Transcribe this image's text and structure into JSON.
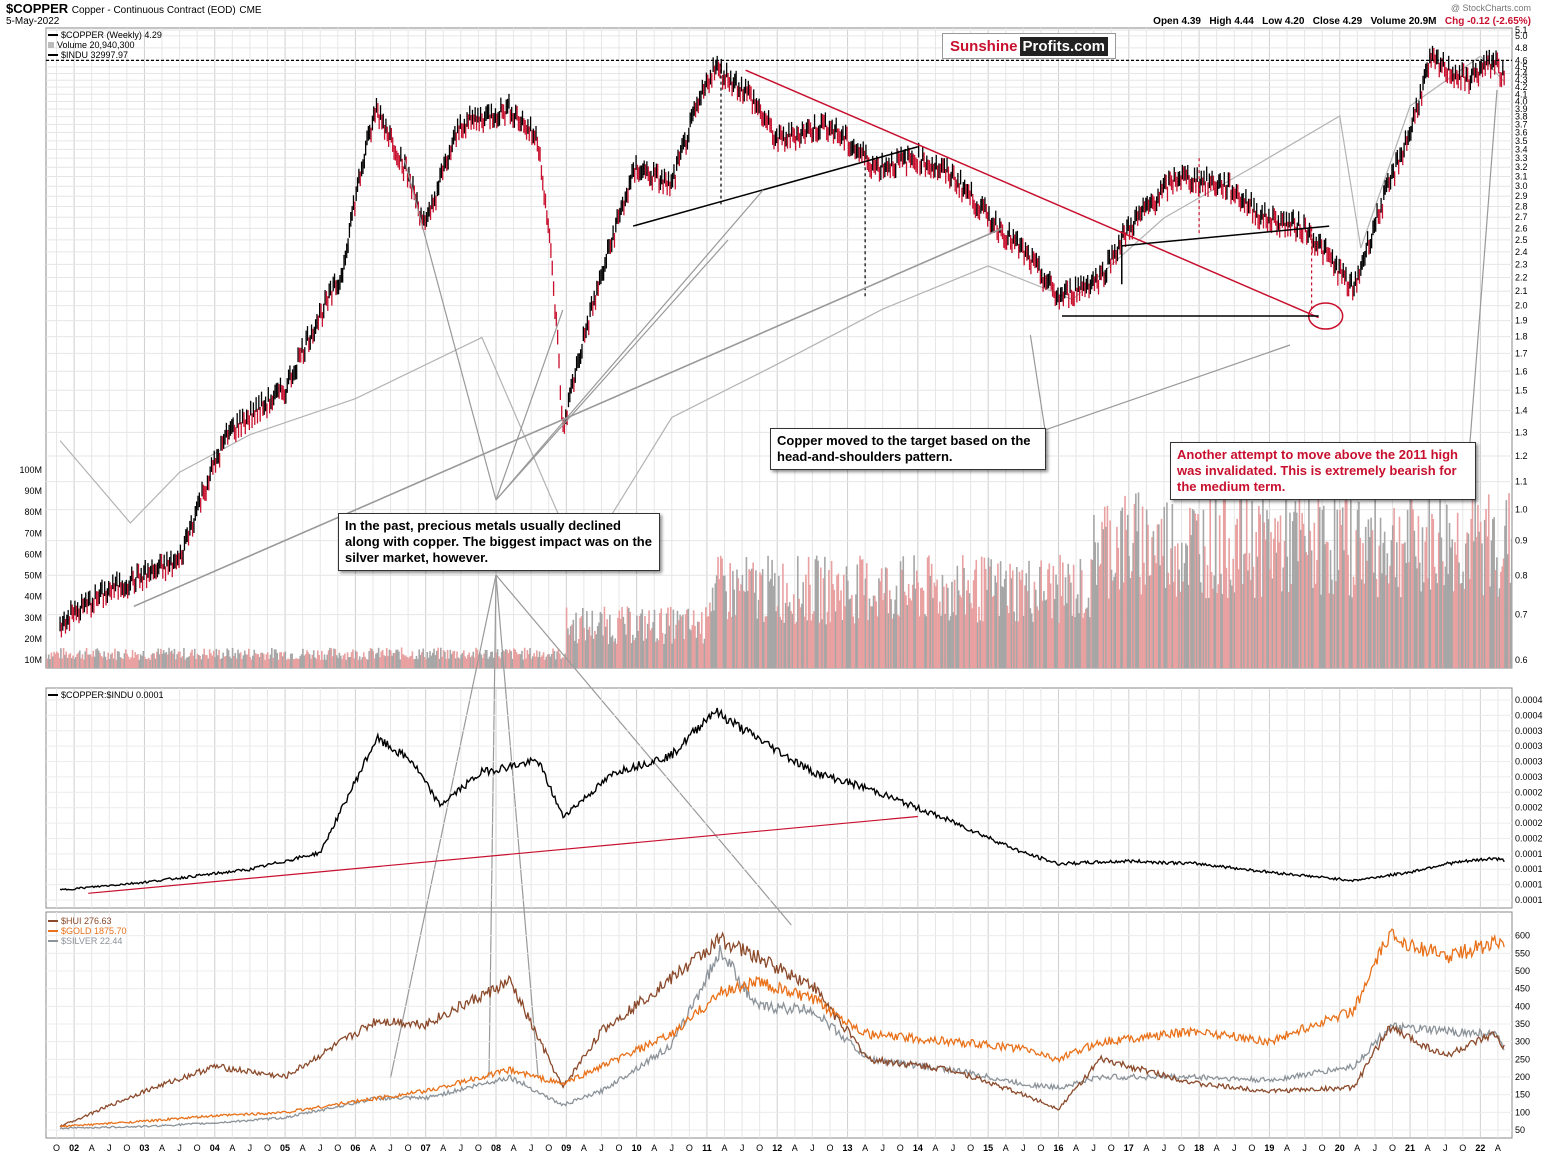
{
  "header": {
    "symbol": "$COPPER",
    "description": "Copper - Continuous Contract (EOD)",
    "exchange": "CME",
    "date": "5-May-2022",
    "open": "Open 4.39",
    "high": "High 4.44",
    "low": "Low 4.20",
    "close": "Close 4.29",
    "volume": "Volume 20.9M",
    "change": "Chg -0.12 (-2.65%)",
    "copyright": "@ StockCharts.com"
  },
  "brand": {
    "part1": "Sunshine",
    "part2": "Profits.com"
  },
  "legends": {
    "main": [
      "$COPPER (Weekly) 4.29",
      "Volume 20,940,300",
      "$INDU 32997.97"
    ],
    "ratio": "$COPPER:$INDU 0.0001",
    "metals": [
      "$HUI 276.63",
      "$GOLD 1875.70",
      "$SILVER 22.44"
    ]
  },
  "annotations": {
    "hs_target": "Copper moved to the target based on the head-and-shoulders pattern.",
    "precious_metals": "In the past, precious metals usually declined along with copper. The biggest impact was on the silver market, however.",
    "invalidation": "Another attempt to move above the 2011 high was invalidated. This is extremely bearish for the medium term."
  },
  "colors": {
    "copper": "#000000",
    "copper_down": "#c8102e",
    "indu": "#b3b3b3",
    "trendline_red": "#c8102e",
    "hui": "#8b4a2b",
    "gold": "#e8711a",
    "silver": "#8c9399",
    "volume_up": "#a6a6a6",
    "volume_down": "#e8a0a0"
  },
  "chart_data": [
    {
      "type": "line",
      "name": "$COPPER (Weekly)",
      "scale": "log",
      "ylim": [
        0.6,
        5.1
      ],
      "y_ticks": [
        "5.1",
        "5.0",
        "4.8",
        "4.6",
        "4.5",
        "4.4",
        "4.3",
        "4.2",
        "4.1",
        "4.0",
        "3.9",
        "3.8",
        "3.7",
        "3.6",
        "3.5",
        "3.4",
        "3.3",
        "3.2",
        "3.1",
        "3.0",
        "2.9",
        "2.8",
        "2.7",
        "2.6",
        "2.5",
        "2.4",
        "2.3",
        "2.2",
        "2.1",
        "2.0",
        "1.9",
        "1.8",
        "1.7",
        "1.6",
        "1.5",
        "1.4",
        "1.3",
        "1.2",
        "1.1",
        "1.0",
        "0.9",
        "0.8",
        "0.7",
        "0.6"
      ],
      "volume_ticks": [
        "100M",
        "90M",
        "80M",
        "70M",
        "60M",
        "50M",
        "40M",
        "30M",
        "20M",
        "10M"
      ],
      "x": [
        2001.8,
        2002.5,
        2003.5,
        2004.2,
        2005.0,
        2005.8,
        2006.3,
        2006.7,
        2007.0,
        2007.5,
        2008.2,
        2008.6,
        2008.95,
        2009.5,
        2010.0,
        2010.5,
        2011.1,
        2011.6,
        2012.0,
        2012.7,
        2013.4,
        2014.0,
        2014.5,
        2015.0,
        2015.5,
        2016.0,
        2016.6,
        2017.0,
        2017.7,
        2018.4,
        2018.9,
        2019.5,
        2020.2,
        2020.7,
        2021.0,
        2021.3,
        2021.8,
        2022.2,
        2022.35
      ],
      "values": [
        0.68,
        0.76,
        0.84,
        1.3,
        1.5,
        2.2,
        3.9,
        3.2,
        2.6,
        3.7,
        3.9,
        3.5,
        1.3,
        2.2,
        3.2,
        3.0,
        4.5,
        4.1,
        3.5,
        3.7,
        3.2,
        3.3,
        3.1,
        2.7,
        2.4,
        2.05,
        2.2,
        2.6,
        3.1,
        3.0,
        2.7,
        2.6,
        2.1,
        3.0,
        3.6,
        4.6,
        4.3,
        4.6,
        4.29
      ]
    },
    {
      "type": "line",
      "name": "$INDU",
      "x": [
        2001.8,
        2002.8,
        2003.5,
        2004.5,
        2006.0,
        2007.8,
        2009.2,
        2010.5,
        2012.0,
        2013.5,
        2015.0,
        2016.2,
        2017.5,
        2018.8,
        2020.0,
        2020.3,
        2021.0,
        2022.0,
        2022.35
      ],
      "values": [
        10000,
        7600,
        9000,
        10200,
        11500,
        14100,
        6600,
        10800,
        12900,
        15500,
        17900,
        16000,
        21000,
        25000,
        29500,
        19000,
        30500,
        36000,
        32997.97
      ]
    },
    {
      "type": "line",
      "name": "$COPPER:$INDU",
      "ylim": [
        5e-05,
        0.00042
      ],
      "y_ticks": [
        "0.0004",
        "0.0004",
        "0.0003",
        "0.0003",
        "0.0003",
        "0.0003",
        "0.0002",
        "0.0002",
        "0.0002",
        "0.0002",
        "0.0001",
        "0.0001",
        "0.0001",
        "0.0001"
      ],
      "x": [
        2001.8,
        2003.0,
        2004.5,
        2005.5,
        2006.3,
        2006.8,
        2007.2,
        2007.8,
        2008.6,
        2008.95,
        2009.7,
        2010.5,
        2011.1,
        2011.6,
        2012.5,
        2013.3,
        2014.5,
        2015.5,
        2016.0,
        2017.0,
        2018.0,
        2019.0,
        2020.2,
        2021.0,
        2021.5,
        2022.2,
        2022.35
      ],
      "values": [
        6.8e-05,
        8.2e-05,
        0.000105,
        0.000135,
        0.00034,
        0.0003,
        0.00022,
        0.00028,
        0.0003,
        0.0002,
        0.00028,
        0.00031,
        0.00039,
        0.00035,
        0.00028,
        0.00025,
        0.00019,
        0.000135,
        0.000115,
        0.00012,
        0.000115,
        0.0001,
        8.5e-05,
        0.0001,
        0.000115,
        0.000125,
        0.00012
      ]
    },
    {
      "type": "line",
      "name": "Precious metals",
      "ylim": [
        50,
        650
      ],
      "y_ticks": [
        "600",
        "550",
        "500",
        "450",
        "400",
        "350",
        "300",
        "250",
        "200",
        "150",
        "100",
        "50"
      ],
      "x": [
        2001.8,
        2003.0,
        2004.0,
        2005.0,
        2006.3,
        2007.0,
        2008.2,
        2008.95,
        2009.5,
        2010.5,
        2011.2,
        2011.7,
        2012.5,
        2013.3,
        2014.5,
        2015.5,
        2016.0,
        2016.6,
        2018.0,
        2019.0,
        2020.2,
        2020.7,
        2021.5,
        2022.2,
        2022.35
      ],
      "series": [
        {
          "name": "$HUI 276.63",
          "values": [
            60,
            160,
            230,
            200,
            360,
            350,
            470,
            170,
            330,
            480,
            590,
            540,
            460,
            250,
            220,
            150,
            110,
            250,
            180,
            160,
            170,
            340,
            260,
            320,
            276.63
          ]
        },
        {
          "name": "$GOLD 1875.70",
          "values": [
            60,
            75,
            90,
            100,
            140,
            160,
            220,
            180,
            230,
            320,
            440,
            470,
            420,
            320,
            300,
            280,
            250,
            300,
            330,
            300,
            390,
            600,
            540,
            580,
            575
          ]
        },
        {
          "name": "$SILVER 22.44",
          "values": [
            55,
            60,
            70,
            85,
            140,
            140,
            200,
            120,
            160,
            290,
            560,
            400,
            390,
            250,
            220,
            180,
            170,
            200,
            200,
            190,
            230,
            340,
            330,
            320,
            280
          ]
        }
      ]
    }
  ],
  "x_axis_labels": [
    {
      "t": 2001.75,
      "label": "O"
    },
    {
      "t": 2002.0,
      "label": "02"
    },
    {
      "t": 2002.25,
      "label": "A"
    },
    {
      "t": 2002.5,
      "label": "J"
    },
    {
      "t": 2002.75,
      "label": "O"
    },
    {
      "t": 2003.0,
      "label": "03"
    },
    {
      "t": 2003.25,
      "label": "A"
    },
    {
      "t": 2003.5,
      "label": "J"
    },
    {
      "t": 2003.75,
      "label": "O"
    },
    {
      "t": 2004.0,
      "label": "04"
    },
    {
      "t": 2004.25,
      "label": "A"
    },
    {
      "t": 2004.5,
      "label": "J"
    },
    {
      "t": 2004.75,
      "label": "O"
    },
    {
      "t": 2005.0,
      "label": "05"
    },
    {
      "t": 2005.25,
      "label": "A"
    },
    {
      "t": 2005.5,
      "label": "J"
    },
    {
      "t": 2005.75,
      "label": "O"
    },
    {
      "t": 2006.0,
      "label": "06"
    },
    {
      "t": 2006.25,
      "label": "A"
    },
    {
      "t": 2006.5,
      "label": "J"
    },
    {
      "t": 2006.75,
      "label": "O"
    },
    {
      "t": 2007.0,
      "label": "07"
    },
    {
      "t": 2007.25,
      "label": "A"
    },
    {
      "t": 2007.5,
      "label": "J"
    },
    {
      "t": 2007.75,
      "label": "O"
    },
    {
      "t": 2008.0,
      "label": "08"
    },
    {
      "t": 2008.25,
      "label": "A"
    },
    {
      "t": 2008.5,
      "label": "J"
    },
    {
      "t": 2008.75,
      "label": "O"
    },
    {
      "t": 2009.0,
      "label": "09"
    },
    {
      "t": 2009.25,
      "label": "A"
    },
    {
      "t": 2009.5,
      "label": "J"
    },
    {
      "t": 2009.75,
      "label": "O"
    },
    {
      "t": 2010.0,
      "label": "10"
    },
    {
      "t": 2010.25,
      "label": "A"
    },
    {
      "t": 2010.5,
      "label": "J"
    },
    {
      "t": 2010.75,
      "label": "O"
    },
    {
      "t": 2011.0,
      "label": "11"
    },
    {
      "t": 2011.25,
      "label": "A"
    },
    {
      "t": 2011.5,
      "label": "J"
    },
    {
      "t": 2011.75,
      "label": "O"
    },
    {
      "t": 2012.0,
      "label": "12"
    },
    {
      "t": 2012.25,
      "label": "A"
    },
    {
      "t": 2012.5,
      "label": "J"
    },
    {
      "t": 2012.75,
      "label": "O"
    },
    {
      "t": 2013.0,
      "label": "13"
    },
    {
      "t": 2013.25,
      "label": "A"
    },
    {
      "t": 2013.5,
      "label": "J"
    },
    {
      "t": 2013.75,
      "label": "O"
    },
    {
      "t": 2014.0,
      "label": "14"
    },
    {
      "t": 2014.25,
      "label": "A"
    },
    {
      "t": 2014.5,
      "label": "J"
    },
    {
      "t": 2014.75,
      "label": "O"
    },
    {
      "t": 2015.0,
      "label": "15"
    },
    {
      "t": 2015.25,
      "label": "A"
    },
    {
      "t": 2015.5,
      "label": "J"
    },
    {
      "t": 2015.75,
      "label": "O"
    },
    {
      "t": 2016.0,
      "label": "16"
    },
    {
      "t": 2016.25,
      "label": "A"
    },
    {
      "t": 2016.5,
      "label": "J"
    },
    {
      "t": 2016.75,
      "label": "O"
    },
    {
      "t": 2017.0,
      "label": "17"
    },
    {
      "t": 2017.25,
      "label": "A"
    },
    {
      "t": 2017.5,
      "label": "J"
    },
    {
      "t": 2017.75,
      "label": "O"
    },
    {
      "t": 2018.0,
      "label": "18"
    },
    {
      "t": 2018.25,
      "label": "A"
    },
    {
      "t": 2018.5,
      "label": "J"
    },
    {
      "t": 2018.75,
      "label": "O"
    },
    {
      "t": 2019.0,
      "label": "19"
    },
    {
      "t": 2019.25,
      "label": "A"
    },
    {
      "t": 2019.5,
      "label": "J"
    },
    {
      "t": 2019.75,
      "label": "O"
    },
    {
      "t": 2020.0,
      "label": "20"
    },
    {
      "t": 2020.25,
      "label": "A"
    },
    {
      "t": 2020.5,
      "label": "J"
    },
    {
      "t": 2020.75,
      "label": "O"
    },
    {
      "t": 2021.0,
      "label": "21"
    },
    {
      "t": 2021.25,
      "label": "A"
    },
    {
      "t": 2021.5,
      "label": "J"
    },
    {
      "t": 2021.75,
      "label": "O"
    },
    {
      "t": 2022.0,
      "label": "22"
    },
    {
      "t": 2022.25,
      "label": "A"
    }
  ]
}
